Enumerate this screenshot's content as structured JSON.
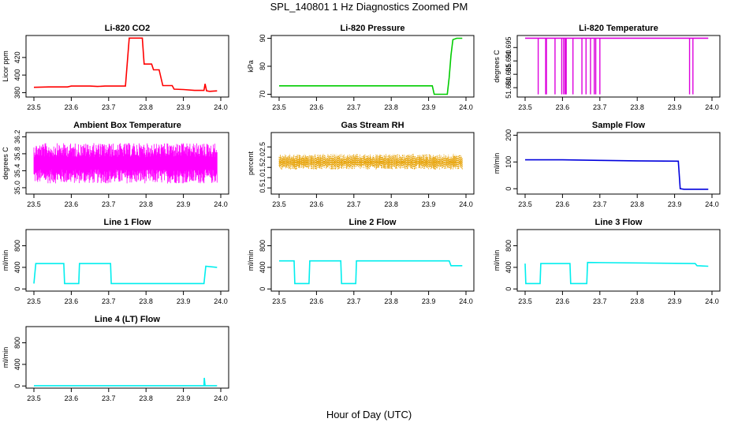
{
  "figure": {
    "title": "SPL_140801  1 Hz Diagnostics Zoomed PM",
    "xlabel": "Hour of Day (UTC)"
  },
  "chart_data": [
    {
      "type": "line",
      "title": "Li-820 CO2",
      "ylabel": "Licor ppm",
      "color": "#ff0000",
      "xlim": [
        23.5,
        24.0
      ],
      "xticks": [
        "23.5",
        "23.6",
        "23.7",
        "23.8",
        "23.9",
        "24.0"
      ],
      "ylim": [
        375,
        445
      ],
      "yticks": [
        "380",
        "400",
        "420"
      ],
      "x": [
        23.5,
        23.54,
        23.59,
        23.6,
        23.65,
        23.67,
        23.69,
        23.74,
        23.745,
        23.755,
        23.79,
        23.795,
        23.815,
        23.82,
        23.835,
        23.845,
        23.87,
        23.875,
        23.9,
        23.93,
        23.955,
        23.958,
        23.962,
        23.97,
        23.99
      ],
      "y": [
        386.0,
        386.5,
        386.5,
        387.5,
        387.5,
        387.0,
        387.5,
        387.5,
        387.5,
        442.0,
        442.0,
        412.5,
        412.5,
        406.0,
        406.0,
        388.0,
        388.0,
        384.0,
        383.5,
        382.5,
        382.5,
        390.0,
        382.0,
        381.5,
        382.0
      ]
    },
    {
      "type": "line",
      "title": "Li-820 Pressure",
      "ylabel": "kPa",
      "color": "#00cc00",
      "xlim": [
        23.5,
        24.0
      ],
      "xticks": [
        "23.5",
        "23.6",
        "23.7",
        "23.8",
        "23.9",
        "24.0"
      ],
      "ylim": [
        69,
        91
      ],
      "yticks": [
        "70",
        "80",
        "90"
      ],
      "x": [
        23.5,
        23.91,
        23.915,
        23.95,
        23.955,
        23.96,
        23.965,
        23.975,
        23.99
      ],
      "y": [
        73.0,
        73.0,
        70.0,
        70.0,
        76.0,
        84.0,
        89.5,
        90.0,
        90.0
      ]
    },
    {
      "type": "line",
      "title": "Li-820 Temperature",
      "ylabel": "degrees C",
      "color": "#dd00dd",
      "xlim": [
        23.5,
        24.0
      ],
      "xticks": [
        "23.5",
        "23.6",
        "23.7",
        "23.8",
        "23.9",
        "24.0"
      ],
      "ylim": [
        51.6765,
        51.6995
      ],
      "yticks": [
        "51.680",
        "51.685",
        "51.690",
        "51.695"
      ],
      "baseline": 51.6985,
      "low": 51.6775,
      "dips": [
        23.535,
        23.555,
        23.557,
        23.58,
        23.598,
        23.603,
        23.607,
        23.61,
        23.628,
        23.652,
        23.663,
        23.675,
        23.685,
        23.689,
        23.7,
        23.94,
        23.949
      ],
      "x": [
        23.5,
        23.99
      ],
      "y": [
        51.6985,
        51.6985
      ]
    },
    {
      "type": "line",
      "title": "Ambient Box Temperature",
      "ylabel": "degrees C",
      "color": "#ff00ff",
      "xlim": [
        23.5,
        24.0
      ],
      "xticks": [
        "23.5",
        "23.6",
        "23.7",
        "23.8",
        "23.9",
        "24.0"
      ],
      "ylim": [
        34.85,
        36.3
      ],
      "yticks": [
        "35.0",
        "35.4",
        "35.8",
        "36.2"
      ],
      "band": [
        35.1,
        36.05
      ],
      "x": [
        23.5,
        23.99
      ],
      "y": [
        35.58,
        35.58
      ]
    },
    {
      "type": "scatter",
      "title": "Gas Stream RH",
      "ylabel": "percent",
      "color": "#e6a000",
      "xlim": [
        23.5,
        24.0
      ],
      "xticks": [
        "23.5",
        "23.6",
        "23.7",
        "23.8",
        "23.9",
        "24.0"
      ],
      "ylim": [
        0.2,
        3.2
      ],
      "yticks": [
        "0.5",
        "1.0",
        "1.5",
        "2.0",
        "2.5"
      ],
      "band": [
        1.4,
        2.15
      ],
      "x": [
        23.5,
        23.99
      ],
      "y": [
        1.75,
        1.75
      ]
    },
    {
      "type": "line",
      "title": "Sample Flow",
      "ylabel": "ml/min",
      "color": "#0000dd",
      "xlim": [
        23.5,
        24.0
      ],
      "xticks": [
        "23.5",
        "23.6",
        "23.7",
        "23.8",
        "23.9",
        "24.0"
      ],
      "ylim": [
        -20,
        210
      ],
      "yticks": [
        "0",
        "100",
        "200"
      ],
      "x": [
        23.5,
        23.6,
        23.7,
        23.8,
        23.91,
        23.915,
        23.925,
        23.99
      ],
      "y": [
        108,
        108,
        106,
        104,
        103,
        0,
        -2,
        -2
      ]
    },
    {
      "type": "line",
      "title": "Line 1 Flow",
      "ylabel": "ml/min",
      "color": "#00eeee",
      "xlim": [
        23.5,
        24.0
      ],
      "xticks": [
        "23.5",
        "23.6",
        "23.7",
        "23.8",
        "23.9",
        "24.0"
      ],
      "ylim": [
        -40,
        1100
      ],
      "yticks": [
        "0",
        "400",
        "800"
      ],
      "x": [
        23.5,
        23.505,
        23.58,
        23.582,
        23.62,
        23.622,
        23.705,
        23.707,
        23.955,
        23.96,
        23.99
      ],
      "y": [
        100,
        470,
        470,
        100,
        100,
        470,
        470,
        100,
        100,
        420,
        400
      ]
    },
    {
      "type": "line",
      "title": "Line 2 Flow",
      "ylabel": "ml/min",
      "color": "#00eeee",
      "xlim": [
        23.5,
        24.0
      ],
      "xticks": [
        "23.5",
        "23.6",
        "23.7",
        "23.8",
        "23.9",
        "24.0"
      ],
      "ylim": [
        -40,
        1100
      ],
      "yticks": [
        "0",
        "400",
        "800"
      ],
      "x": [
        23.5,
        23.54,
        23.542,
        23.58,
        23.582,
        23.665,
        23.667,
        23.705,
        23.707,
        23.955,
        23.96,
        23.99
      ],
      "y": [
        520,
        520,
        100,
        100,
        520,
        520,
        100,
        100,
        520,
        520,
        430,
        430
      ]
    },
    {
      "type": "line",
      "title": "Line 3 Flow",
      "ylabel": "ml/min",
      "color": "#00eeee",
      "xlim": [
        23.5,
        24.0
      ],
      "xticks": [
        "23.5",
        "23.6",
        "23.7",
        "23.8",
        "23.9",
        "24.0"
      ],
      "ylim": [
        -40,
        1100
      ],
      "yticks": [
        "0",
        "400",
        "800"
      ],
      "x": [
        23.5,
        23.502,
        23.505,
        23.54,
        23.542,
        23.62,
        23.622,
        23.665,
        23.667,
        23.955,
        23.96,
        23.99
      ],
      "y": [
        470,
        100,
        100,
        100,
        470,
        470,
        100,
        100,
        490,
        470,
        430,
        420
      ]
    },
    {
      "type": "line",
      "title": "Line 4 (LT) Flow",
      "ylabel": "ml/min",
      "color": "#00eeee",
      "xlim": [
        23.5,
        24.0
      ],
      "xticks": [
        "23.5",
        "23.6",
        "23.7",
        "23.8",
        "23.9",
        "24.0"
      ],
      "ylim": [
        -40,
        1100
      ],
      "yticks": [
        "0",
        "400",
        "800"
      ],
      "x": [
        23.5,
        23.955,
        23.956,
        23.958,
        23.96,
        23.99
      ],
      "y": [
        5,
        5,
        150,
        5,
        5,
        5
      ]
    }
  ]
}
